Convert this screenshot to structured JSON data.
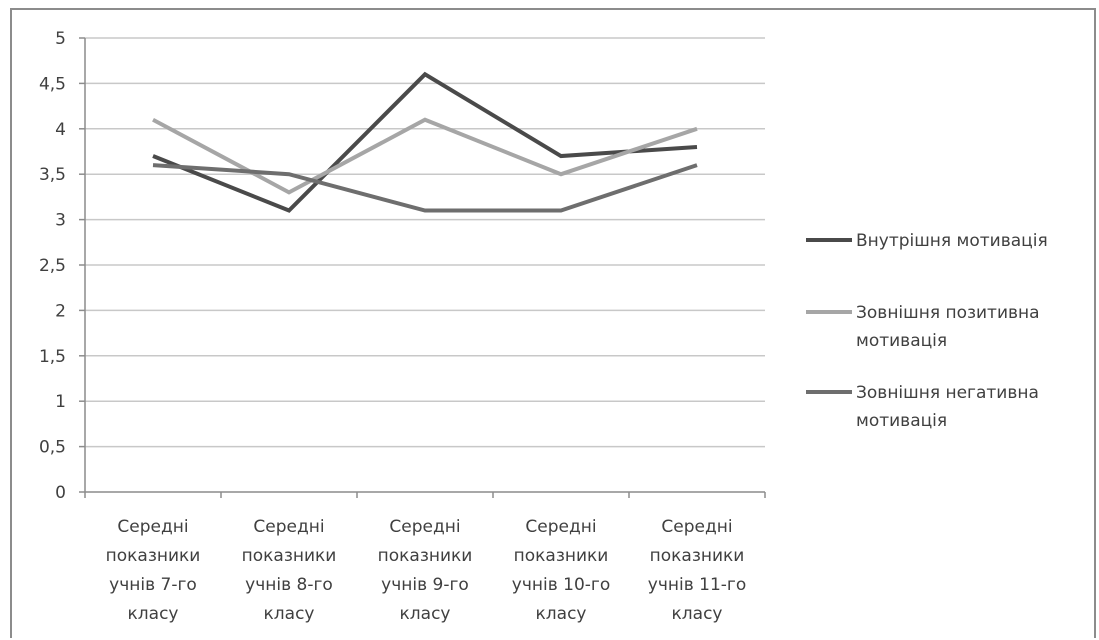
{
  "chart_data": {
    "type": "line",
    "title": "",
    "xlabel": "",
    "ylabel": "",
    "ylim": [
      0,
      5
    ],
    "yticks": [
      "0",
      "0,5",
      "1",
      "1,5",
      "2",
      "2,5",
      "3",
      "3,5",
      "4",
      "4,5",
      "5"
    ],
    "grid": true,
    "legend_position": "right",
    "categories": [
      [
        "Середні",
        "показники",
        "учнів 7-го",
        "класу"
      ],
      [
        "Середні",
        "показники",
        "учнів 8-го",
        "класу"
      ],
      [
        "Середні",
        "показники",
        "учнів 9-го",
        "класу"
      ],
      [
        "Середні",
        "показники",
        "учнів 10-го",
        "класу"
      ],
      [
        "Середні",
        "показники",
        "учнів 11-го",
        "класу"
      ]
    ],
    "series": [
      {
        "name": [
          "Внутрішня мотивація"
        ],
        "values": [
          3.7,
          3.1,
          4.6,
          3.7,
          3.8
        ],
        "color": "#4a4a4a"
      },
      {
        "name": [
          "Зовнішня позитивна",
          "мотивація"
        ],
        "values": [
          4.1,
          3.3,
          4.1,
          3.5,
          4.0
        ],
        "color": "#a6a6a6"
      },
      {
        "name": [
          "Зовнішня негативна",
          "мотивація"
        ],
        "values": [
          3.6,
          3.5,
          3.1,
          3.1,
          3.6
        ],
        "color": "#6e6e6e"
      }
    ]
  }
}
